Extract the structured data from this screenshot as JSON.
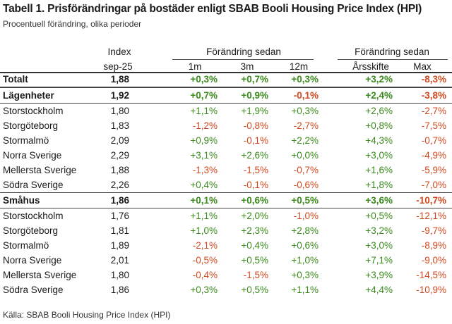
{
  "title": "Tabell 1. Prisförändringar på bostäder enligt SBAB Booli Housing Price Index (HPI)",
  "subtitle": "Procentuell förändring, olika perioder",
  "source": "Källa: SBAB Booli Housing Price Index (HPI)",
  "headers": {
    "index_top": "Index",
    "index_bottom": "sep-25",
    "group1": "Förändring sedan",
    "group2": "Förändring sedan",
    "m1": "1m",
    "m3": "3m",
    "m12": "12m",
    "ytd": "Årsskifte",
    "max": "Max"
  },
  "colors": {
    "positive": "#3a8a1c",
    "negative": "#d2481e"
  },
  "rows": [
    {
      "name": "Totalt",
      "index": "1,88",
      "m1": "+0,3%",
      "m3": "+0,7%",
      "m12": "+0,3%",
      "ytd": "+3,2%",
      "max": "-8,3%",
      "bold": true
    },
    {
      "name": "Lägenheter",
      "index": "1,92",
      "m1": "+0,7%",
      "m3": "+0,9%",
      "m12": "-0,1%",
      "ytd": "+2,4%",
      "max": "-3,8%",
      "bold": true
    },
    {
      "name": "Storstockholm",
      "index": "1,80",
      "m1": "+1,1%",
      "m3": "+1,9%",
      "m12": "+0,3%",
      "ytd": "+2,6%",
      "max": "-2,7%"
    },
    {
      "name": "Storgöteborg",
      "index": "1,83",
      "m1": "-1,2%",
      "m3": "-0,8%",
      "m12": "-2,7%",
      "ytd": "+0,8%",
      "max": "-7,5%"
    },
    {
      "name": "Stormalmö",
      "index": "2,09",
      "m1": "+0,9%",
      "m3": "-0,1%",
      "m12": "+2,2%",
      "ytd": "+4,3%",
      "max": "-0,7%"
    },
    {
      "name": "Norra Sverige",
      "index": "2,29",
      "m1": "+3,1%",
      "m3": "+2,6%",
      "m12": "+0,0%",
      "ytd": "+3,0%",
      "max": "-4,9%"
    },
    {
      "name": "Mellersta Sverige",
      "index": "1,88",
      "m1": "-1,3%",
      "m3": "-1,5%",
      "m12": "-0,7%",
      "ytd": "+1,6%",
      "max": "-5,9%"
    },
    {
      "name": "Södra Sverige",
      "index": "2,26",
      "m1": "+0,4%",
      "m3": "-0,1%",
      "m12": "-0,6%",
      "ytd": "+1,8%",
      "max": "-7,0%"
    },
    {
      "name": "Småhus",
      "index": "1,86",
      "m1": "+0,1%",
      "m3": "+0,6%",
      "m12": "+0,5%",
      "ytd": "+3,6%",
      "max": "-10,7%",
      "bold": true
    },
    {
      "name": "Storstockholm",
      "index": "1,76",
      "m1": "+1,1%",
      "m3": "+2,0%",
      "m12": "-1,0%",
      "ytd": "+0,5%",
      "max": "-12,1%"
    },
    {
      "name": "Storgöteborg",
      "index": "1,81",
      "m1": "+1,0%",
      "m3": "+2,3%",
      "m12": "+2,8%",
      "ytd": "+3,2%",
      "max": "-9,7%"
    },
    {
      "name": "Stormalmö",
      "index": "1,89",
      "m1": "-2,1%",
      "m3": "+0,4%",
      "m12": "+0,6%",
      "ytd": "+3,0%",
      "max": "-8,9%"
    },
    {
      "name": "Norra Sverige",
      "index": "2,01",
      "m1": "-0,5%",
      "m3": "+0,5%",
      "m12": "+1,0%",
      "ytd": "+7,1%",
      "max": "-9,0%"
    },
    {
      "name": "Mellersta Sverige",
      "index": "1,80",
      "m1": "-0,4%",
      "m3": "-1,5%",
      "m12": "+0,3%",
      "ytd": "+3,9%",
      "max": "-14,5%"
    },
    {
      "name": "Södra Sverige",
      "index": "1,86",
      "m1": "+0,3%",
      "m3": "+0,5%",
      "m12": "+1,1%",
      "ytd": "+4,4%",
      "max": "-10,9%"
    }
  ]
}
